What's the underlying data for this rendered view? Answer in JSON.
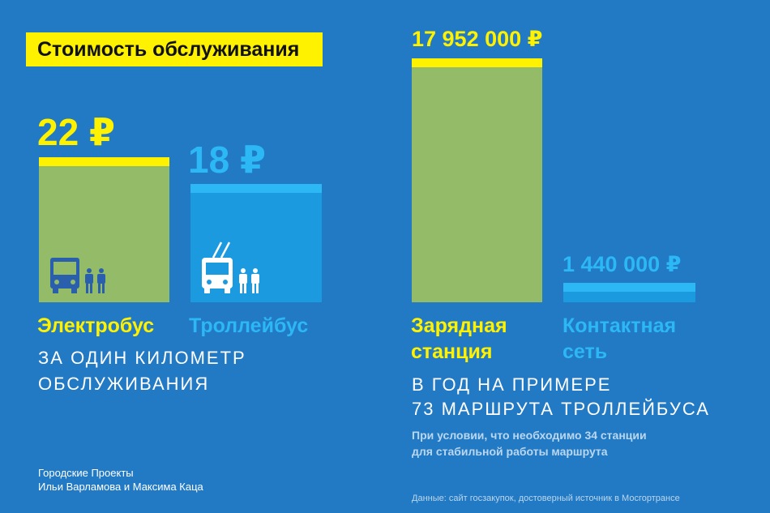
{
  "title": "Стоимость обслуживания",
  "chart_data": [
    {
      "type": "bar",
      "categories": [
        "Электробус",
        "Троллейбус"
      ],
      "values": [
        22,
        18
      ],
      "value_labels": [
        "22 ₽",
        "18 ₽"
      ],
      "caption_lines": [
        "ЗА ОДИН КИЛОМЕТР",
        "ОБСЛУЖИВАНИЯ"
      ],
      "ylim": [
        0,
        22
      ]
    },
    {
      "type": "bar",
      "category_lines": [
        [
          "Зарядная",
          "станция"
        ],
        [
          "Контактная",
          "сеть"
        ]
      ],
      "values": [
        17952000,
        1440000
      ],
      "value_labels": [
        "17 952 000 ₽",
        "1 440 000 ₽"
      ],
      "caption_lines": [
        "В ГОД НА ПРИМЕРЕ",
        "73 МАРШРУТА ТРОЛЛЕЙБУСА"
      ],
      "note_lines": [
        "При условии, что необходимо 34 станции",
        "для стабильной работы маршрута"
      ],
      "ylim": [
        0,
        17952000
      ]
    }
  ],
  "credit_lines": [
    "Городские Проекты",
    "Ильи Варламова и Максима Каца"
  ],
  "source": "Данные: сайт госзакупок, достоверный источник в Мосгортрансе",
  "colors": {
    "background": "#2279c4",
    "yellow": "#fff200",
    "green_bar": "#93bb68",
    "cyan": "#2cb7f5",
    "cyan_bar": "#1b9ae0"
  },
  "icons": [
    "bus-icon",
    "trolleybus-icon",
    "people-icon"
  ]
}
